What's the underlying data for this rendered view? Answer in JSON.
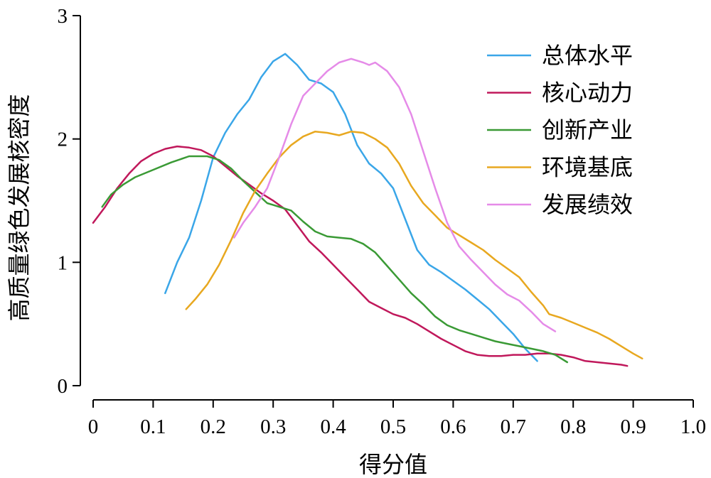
{
  "chart_data": {
    "type": "line",
    "title": "",
    "xlabel": "得分值",
    "ylabel": "高质量绿色发展核密度",
    "xlim": [
      0,
      1.0
    ],
    "ylim": [
      0,
      3
    ],
    "x_ticks": [
      "0",
      "0.1",
      "0.2",
      "0.3",
      "0.4",
      "0.5",
      "0.6",
      "0.7",
      "0.8",
      "0.9",
      "1.0"
    ],
    "y_ticks": [
      "0",
      "1",
      "2",
      "3"
    ],
    "grid": false,
    "legend_position": "top-right",
    "series": [
      {
        "name": "总体水平",
        "color": "#3aa6e8",
        "points": [
          [
            0.12,
            0.75
          ],
          [
            0.14,
            1.0
          ],
          [
            0.16,
            1.2
          ],
          [
            0.18,
            1.5
          ],
          [
            0.2,
            1.85
          ],
          [
            0.22,
            2.05
          ],
          [
            0.24,
            2.2
          ],
          [
            0.26,
            2.32
          ],
          [
            0.28,
            2.5
          ],
          [
            0.3,
            2.63
          ],
          [
            0.32,
            2.69
          ],
          [
            0.34,
            2.6
          ],
          [
            0.36,
            2.48
          ],
          [
            0.38,
            2.45
          ],
          [
            0.4,
            2.38
          ],
          [
            0.42,
            2.2
          ],
          [
            0.44,
            1.95
          ],
          [
            0.46,
            1.8
          ],
          [
            0.48,
            1.72
          ],
          [
            0.5,
            1.6
          ],
          [
            0.52,
            1.35
          ],
          [
            0.54,
            1.1
          ],
          [
            0.56,
            0.98
          ],
          [
            0.58,
            0.92
          ],
          [
            0.6,
            0.85
          ],
          [
            0.62,
            0.78
          ],
          [
            0.64,
            0.7
          ],
          [
            0.66,
            0.62
          ],
          [
            0.68,
            0.52
          ],
          [
            0.7,
            0.42
          ],
          [
            0.72,
            0.3
          ],
          [
            0.74,
            0.2
          ]
        ]
      },
      {
        "name": "核心动力",
        "color": "#c0185b",
        "points": [
          [
            0,
            1.32
          ],
          [
            0.02,
            1.45
          ],
          [
            0.04,
            1.6
          ],
          [
            0.06,
            1.72
          ],
          [
            0.08,
            1.82
          ],
          [
            0.1,
            1.88
          ],
          [
            0.12,
            1.92
          ],
          [
            0.14,
            1.94
          ],
          [
            0.16,
            1.93
          ],
          [
            0.18,
            1.91
          ],
          [
            0.2,
            1.86
          ],
          [
            0.22,
            1.78
          ],
          [
            0.24,
            1.7
          ],
          [
            0.26,
            1.63
          ],
          [
            0.28,
            1.56
          ],
          [
            0.3,
            1.5
          ],
          [
            0.32,
            1.43
          ],
          [
            0.34,
            1.3
          ],
          [
            0.36,
            1.17
          ],
          [
            0.38,
            1.08
          ],
          [
            0.4,
            0.98
          ],
          [
            0.42,
            0.88
          ],
          [
            0.44,
            0.78
          ],
          [
            0.46,
            0.68
          ],
          [
            0.48,
            0.63
          ],
          [
            0.5,
            0.58
          ],
          [
            0.52,
            0.55
          ],
          [
            0.54,
            0.5
          ],
          [
            0.56,
            0.44
          ],
          [
            0.58,
            0.38
          ],
          [
            0.6,
            0.33
          ],
          [
            0.62,
            0.28
          ],
          [
            0.64,
            0.25
          ],
          [
            0.66,
            0.24
          ],
          [
            0.68,
            0.24
          ],
          [
            0.7,
            0.25
          ],
          [
            0.72,
            0.25
          ],
          [
            0.74,
            0.26
          ],
          [
            0.76,
            0.26
          ],
          [
            0.78,
            0.25
          ],
          [
            0.8,
            0.23
          ],
          [
            0.82,
            0.2
          ],
          [
            0.84,
            0.19
          ],
          [
            0.86,
            0.18
          ],
          [
            0.88,
            0.17
          ],
          [
            0.89,
            0.16
          ]
        ]
      },
      {
        "name": "创新产业",
        "color": "#3a9a35",
        "points": [
          [
            0.015,
            1.45
          ],
          [
            0.03,
            1.55
          ],
          [
            0.05,
            1.63
          ],
          [
            0.07,
            1.69
          ],
          [
            0.1,
            1.75
          ],
          [
            0.13,
            1.81
          ],
          [
            0.16,
            1.86
          ],
          [
            0.19,
            1.86
          ],
          [
            0.21,
            1.83
          ],
          [
            0.23,
            1.76
          ],
          [
            0.25,
            1.66
          ],
          [
            0.27,
            1.57
          ],
          [
            0.29,
            1.48
          ],
          [
            0.31,
            1.45
          ],
          [
            0.33,
            1.42
          ],
          [
            0.35,
            1.33
          ],
          [
            0.37,
            1.25
          ],
          [
            0.39,
            1.21
          ],
          [
            0.41,
            1.2
          ],
          [
            0.43,
            1.19
          ],
          [
            0.45,
            1.15
          ],
          [
            0.47,
            1.08
          ],
          [
            0.49,
            0.97
          ],
          [
            0.51,
            0.86
          ],
          [
            0.53,
            0.75
          ],
          [
            0.55,
            0.66
          ],
          [
            0.57,
            0.56
          ],
          [
            0.59,
            0.49
          ],
          [
            0.61,
            0.45
          ],
          [
            0.63,
            0.42
          ],
          [
            0.65,
            0.39
          ],
          [
            0.67,
            0.36
          ],
          [
            0.69,
            0.34
          ],
          [
            0.71,
            0.32
          ],
          [
            0.73,
            0.3
          ],
          [
            0.75,
            0.28
          ],
          [
            0.77,
            0.25
          ],
          [
            0.79,
            0.19
          ]
        ]
      },
      {
        "name": "环境基底",
        "color": "#e8a820",
        "points": [
          [
            0.155,
            0.62
          ],
          [
            0.17,
            0.7
          ],
          [
            0.19,
            0.82
          ],
          [
            0.21,
            0.98
          ],
          [
            0.23,
            1.18
          ],
          [
            0.25,
            1.4
          ],
          [
            0.27,
            1.58
          ],
          [
            0.29,
            1.72
          ],
          [
            0.31,
            1.85
          ],
          [
            0.33,
            1.95
          ],
          [
            0.35,
            2.02
          ],
          [
            0.37,
            2.06
          ],
          [
            0.39,
            2.05
          ],
          [
            0.41,
            2.03
          ],
          [
            0.43,
            2.06
          ],
          [
            0.45,
            2.05
          ],
          [
            0.47,
            2.0
          ],
          [
            0.49,
            1.93
          ],
          [
            0.51,
            1.8
          ],
          [
            0.53,
            1.62
          ],
          [
            0.55,
            1.48
          ],
          [
            0.57,
            1.38
          ],
          [
            0.59,
            1.28
          ],
          [
            0.61,
            1.22
          ],
          [
            0.63,
            1.16
          ],
          [
            0.65,
            1.1
          ],
          [
            0.67,
            1.02
          ],
          [
            0.69,
            0.95
          ],
          [
            0.71,
            0.88
          ],
          [
            0.73,
            0.76
          ],
          [
            0.75,
            0.65
          ],
          [
            0.76,
            0.58
          ],
          [
            0.78,
            0.55
          ],
          [
            0.8,
            0.51
          ],
          [
            0.82,
            0.47
          ],
          [
            0.84,
            0.43
          ],
          [
            0.86,
            0.38
          ],
          [
            0.88,
            0.32
          ],
          [
            0.9,
            0.26
          ],
          [
            0.915,
            0.22
          ]
        ]
      },
      {
        "name": "发展绩效",
        "color": "#e58be8",
        "points": [
          [
            0.235,
            1.2
          ],
          [
            0.25,
            1.32
          ],
          [
            0.27,
            1.45
          ],
          [
            0.29,
            1.6
          ],
          [
            0.31,
            1.85
          ],
          [
            0.33,
            2.12
          ],
          [
            0.35,
            2.35
          ],
          [
            0.37,
            2.45
          ],
          [
            0.39,
            2.55
          ],
          [
            0.41,
            2.62
          ],
          [
            0.43,
            2.65
          ],
          [
            0.45,
            2.62
          ],
          [
            0.46,
            2.6
          ],
          [
            0.47,
            2.62
          ],
          [
            0.49,
            2.55
          ],
          [
            0.51,
            2.42
          ],
          [
            0.53,
            2.2
          ],
          [
            0.55,
            1.9
          ],
          [
            0.57,
            1.6
          ],
          [
            0.59,
            1.32
          ],
          [
            0.61,
            1.13
          ],
          [
            0.63,
            1.02
          ],
          [
            0.65,
            0.92
          ],
          [
            0.67,
            0.82
          ],
          [
            0.69,
            0.74
          ],
          [
            0.71,
            0.69
          ],
          [
            0.73,
            0.6
          ],
          [
            0.75,
            0.5
          ],
          [
            0.77,
            0.44
          ]
        ]
      }
    ]
  }
}
